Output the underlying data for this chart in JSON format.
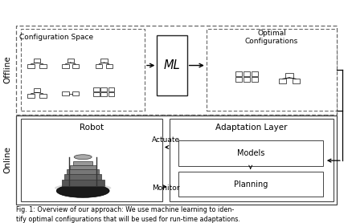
{
  "bg_color": "#ffffff",
  "offline_label": "Offline",
  "online_label": "Online",
  "config_space_label": "Configuration Space",
  "optimal_config_label": "Optimal\nConfigurations",
  "ml_label": "ML",
  "robot_label": "Robot",
  "adapt_layer_label": "Adaptation Layer",
  "models_label": "Models",
  "planning_label": "Planning",
  "actuate_label": "Actuate",
  "monitor_label": "Monitor",
  "caption": "Fig. 1: Overview of our approach: We use machine learning to iden-\ntify optimal configurations that will be used for run-time adaptations."
}
